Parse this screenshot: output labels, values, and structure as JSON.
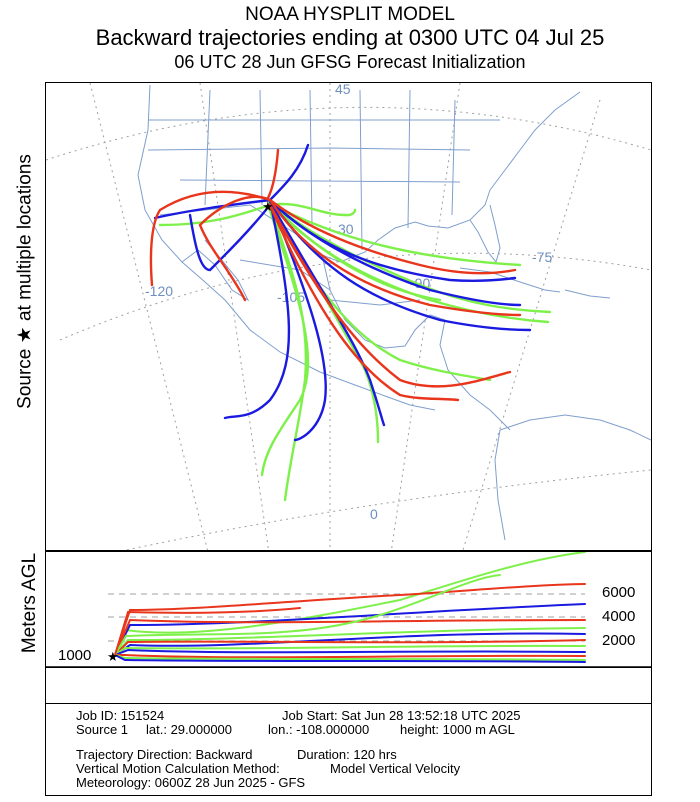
{
  "header": {
    "title": "NOAA HYSPLIT MODEL",
    "subtitle": "Backward trajectories ending at 0300 UTC 04 Jul 25",
    "init_line": "06 UTC 28 Jun    GFSG  Forecast Initialization"
  },
  "axis_labels": {
    "source_label": "Source ★ at multiple locations",
    "height_label": "Meters AGL"
  },
  "map_labels": {
    "lat_45": "45",
    "lat_30": "30",
    "lat_0": "0",
    "lon_m120": "-120",
    "lon_m105": "-105",
    "lon_m90": "-90",
    "lon_m75": "-75"
  },
  "height_ticks": {
    "h6000": "6000",
    "h4000": "4000",
    "h2000": "2000",
    "h1000": "1000"
  },
  "info": {
    "job_id": "Job ID: 151524",
    "job_start": "Job Start: Sat Jun 28 13:52:18 UTC 2025",
    "source": "Source 1",
    "lat": "lat.: 29.000000",
    "lon": "lon.: -108.000000",
    "height": "height: 1000 m AGL",
    "direction": "Trajectory Direction: Backward",
    "duration": "Duration: 120 hrs",
    "vertical_method": "Vertical Motion Calculation Method:",
    "vertical_value": "Model Vertical Velocity",
    "meteorology": "Meteorology: 0600Z 28 Jun 2025 - GFS"
  },
  "colors": {
    "red": "#e8351c",
    "blue": "#1a1ae0",
    "green": "#7ef04a",
    "map_lines": "#7f9fcc",
    "grid": "#a0a0a0",
    "label_blue": "#6f8fbf"
  },
  "source_marker": "star-icon"
}
